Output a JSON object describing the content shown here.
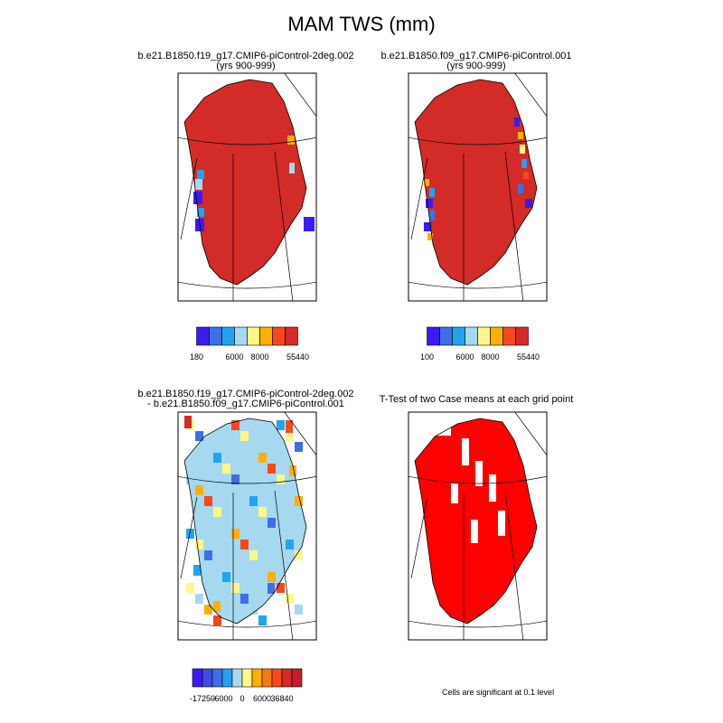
{
  "title": "MAM TWS (mm)",
  "panels": [
    {
      "id": "case1",
      "title_lines": [
        "b.e21.B1850.f19_g17.CMIP6-piControl-2deg.002",
        "(yrs 900-999)"
      ],
      "colorbar": {
        "colors": [
          "#3a1cf2",
          "#3f6fe6",
          "#22a3ee",
          "#a6d9ef",
          "#fdf78a",
          "#fcb000",
          "#f5491d",
          "#d22b28"
        ],
        "tick_labels": [
          "180",
          "6000",
          "8000",
          "55440"
        ],
        "tick_after_box": [
          0,
          3,
          5,
          8
        ]
      },
      "dominant_color": "#d22b28"
    },
    {
      "id": "case2",
      "title_lines": [
        "b.e21.B1850.f09_g17.CMIP6-piControl.001",
        "(yrs 900-999)"
      ],
      "colorbar": {
        "colors": [
          "#3a1cf2",
          "#3f6fe6",
          "#22a3ee",
          "#a6d9ef",
          "#fdf78a",
          "#fcb000",
          "#f5491d",
          "#d22b28"
        ],
        "tick_labels": [
          "100",
          "6000",
          "8000",
          "55440"
        ],
        "tick_after_box": [
          0,
          3,
          5,
          8
        ]
      },
      "dominant_color": "#d22b28"
    },
    {
      "id": "diff",
      "title_lines": [
        "b.e21.B1850.f19_g17.CMIP6-piControl-2deg.002",
        "- b.e21.B1850.f09_g17.CMIP6-piControl.001"
      ],
      "colorbar": {
        "colors": [
          "#3a1cf2",
          "#3f4ae8",
          "#3f6fe6",
          "#22a3ee",
          "#a6d9ef",
          "#fdf78a",
          "#fcb000",
          "#f77a0a",
          "#f5491d",
          "#d22b28",
          "#c41e2a"
        ],
        "tick_labels": [
          "-17250",
          "-6000",
          "0",
          "6000",
          "36840"
        ],
        "tick_after_box": [
          1,
          3,
          5,
          7,
          9
        ]
      },
      "dominant_color": "#a6d9ef"
    },
    {
      "id": "ttest",
      "title_lines": [
        "T-Test of two Case means at each grid point"
      ],
      "note": "Cells are significant at 0.1 level",
      "dominant_color": "#ff0000"
    }
  ]
}
